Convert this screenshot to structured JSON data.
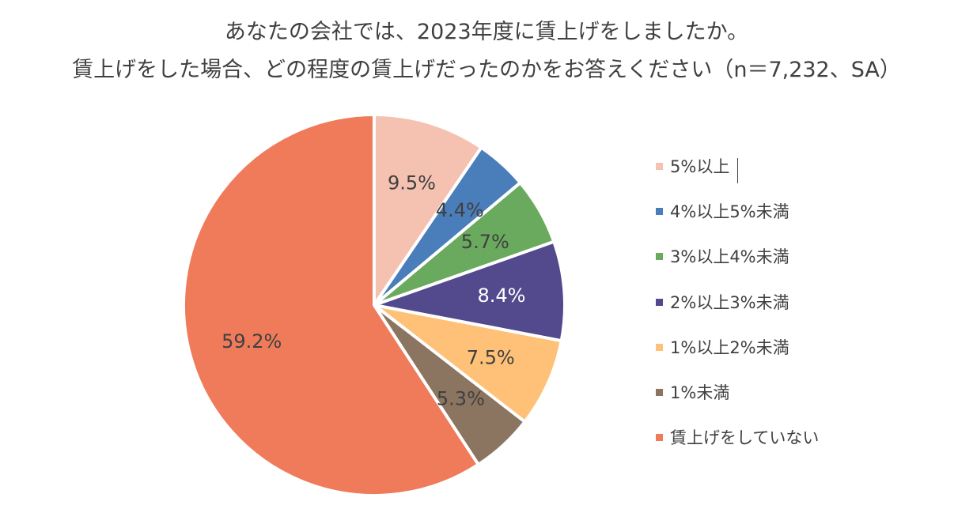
{
  "chart_data": {
    "type": "pie",
    "title": "あなたの会社では、2023年度に賃上げをしましたか。",
    "subtitle": "賃上げをした場合、どの程度の賃上げだったのかをお答えください（n＝7,232、SA）",
    "start_angle_deg": 0,
    "direction": "clockwise",
    "legend_position": "right",
    "slices": [
      {
        "label": "5%以上",
        "value": 9.5,
        "value_label": "9.5%",
        "color": "#F5C2B2",
        "label_color": "#404040"
      },
      {
        "label": "4%以上5%未満",
        "value": 4.4,
        "value_label": "4.4%",
        "color": "#4A7EBB",
        "label_color": "#404040"
      },
      {
        "label": "3%以上4%未満",
        "value": 5.7,
        "value_label": "5.7%",
        "color": "#6AAA5E",
        "label_color": "#404040"
      },
      {
        "label": "2%以上3%未満",
        "value": 8.4,
        "value_label": "8.4%",
        "color": "#534A8E",
        "label_color": "#FFFFFF"
      },
      {
        "label": "1%以上2%未満",
        "value": 7.5,
        "value_label": "7.5%",
        "color": "#FFC177",
        "label_color": "#404040"
      },
      {
        "label": "1%未満",
        "value": 5.3,
        "value_label": "5.3%",
        "color": "#8C7560",
        "label_color": "#404040"
      },
      {
        "label": "賃上げをしていない",
        "value": 59.2,
        "value_label": "59.2%",
        "color": "#EF7B5A",
        "label_color": "#404040"
      }
    ]
  }
}
